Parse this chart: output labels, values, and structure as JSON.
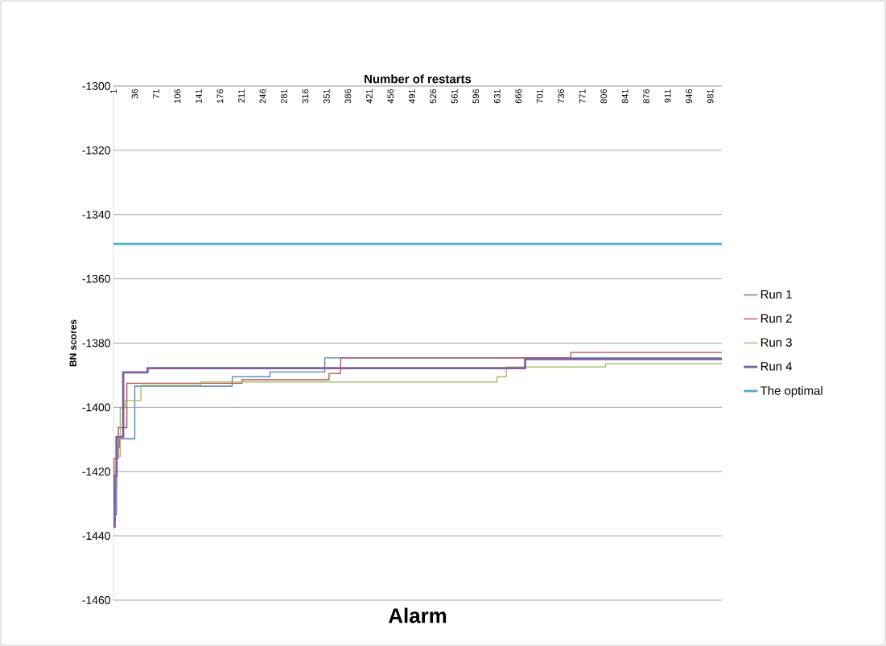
{
  "chart_data": {
    "type": "step",
    "title": "Alarm",
    "xlabel": "Number of restarts",
    "ylabel": "BN scores",
    "xlim": [
      1,
      1000
    ],
    "ylim": [
      -1460,
      -1300
    ],
    "xticks": [
      1,
      36,
      71,
      106,
      141,
      176,
      211,
      246,
      281,
      316,
      351,
      386,
      421,
      456,
      491,
      526,
      561,
      596,
      631,
      666,
      701,
      736,
      771,
      806,
      841,
      876,
      911,
      946,
      981
    ],
    "yticks": [
      -1460,
      -1440,
      -1420,
      -1400,
      -1380,
      -1360,
      -1340,
      -1320,
      -1300
    ],
    "grid": "y",
    "legend": "right",
    "marker": "none",
    "line_style": "solid",
    "series": [
      {
        "name": "Run 1",
        "color": "#4a7ebb",
        "x": [
          1,
          6,
          11,
          36,
          196,
          258,
          348,
          1000
        ],
        "values": [
          -1433.4,
          -1412.6,
          -1409.8,
          -1393.4,
          -1390.5,
          -1389.0,
          -1384.6,
          -1384.6
        ]
      },
      {
        "name": "Run 2",
        "color": "#be4b48",
        "x": [
          1,
          2,
          9,
          23,
          212,
          355,
          374,
          752,
          1000
        ],
        "values": [
          -1430,
          -1415.9,
          -1406.3,
          -1392.5,
          -1391.4,
          -1389.4,
          -1384.6,
          -1382.9,
          -1382.9
        ]
      },
      {
        "name": "Run 3",
        "color": "#98b954",
        "x": [
          1,
          7,
          12,
          20,
          46,
          144,
          631,
          646,
          809,
          1000
        ],
        "values": [
          -1425,
          -1415.4,
          -1400.1,
          -1397.9,
          -1393.1,
          -1392.1,
          -1390.5,
          -1387.4,
          -1386.4,
          -1386.4
        ]
      },
      {
        "name": "Run 4",
        "color": "#7d60a0",
        "x": [
          1,
          3,
          6,
          17,
          57,
          677,
          1000
        ],
        "values": [
          -1437.2,
          -1421.3,
          -1409.2,
          -1389.1,
          -1387.8,
          -1385.0,
          -1385.0
        ]
      },
      {
        "name": "The optimal",
        "color": "#4bacc6",
        "x": [
          1,
          1000
        ],
        "values": [
          -1349.1,
          -1349.1
        ]
      }
    ]
  }
}
